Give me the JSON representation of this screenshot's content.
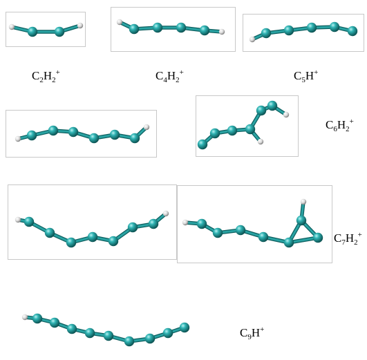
{
  "labels": {
    "c2h2": {
      "main": "C",
      "n1": "2",
      "mid": "H",
      "n2": "2",
      "charge": "+"
    },
    "c4h2": {
      "main": "C",
      "n1": "4",
      "mid": "H",
      "n2": "2",
      "charge": "+"
    },
    "c5h": {
      "main": "C",
      "n1": "5",
      "mid": "H",
      "charge": "+"
    },
    "c6h2": {
      "main": "C",
      "n1": "6",
      "mid": "H",
      "n2": "2",
      "charge": "+"
    },
    "c7h2": {
      "main": "C",
      "n1": "7",
      "mid": "H",
      "n2": "2",
      "charge": "+"
    },
    "c9h": {
      "main": "C",
      "n1": "9",
      "mid": "H",
      "charge": "+"
    }
  },
  "colors": {
    "carbon": "#1f9a9a",
    "carbon_dark": "#0c5e5e",
    "carbon_light": "#7fe0e0",
    "hydrogen": "#e6e6e6",
    "hydrogen_dark": "#8c8c8c",
    "bond": "#2aa3a3",
    "frame": "#c8c8c8"
  }
}
